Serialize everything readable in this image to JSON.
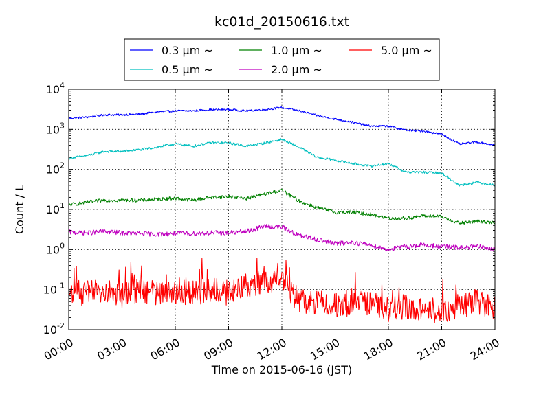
{
  "chart_data": {
    "type": "line",
    "title": "kc01d_20150616.txt",
    "xlabel": "Time on 2015-06-16 (JST)",
    "ylabel": "Count / L",
    "y_scale": "log",
    "ylim": [
      0.01,
      10000
    ],
    "xlim": [
      0,
      24
    ],
    "x_unit": "hours",
    "grid": true,
    "legend_position": "top-center",
    "x_ticks": [
      {
        "value": 0,
        "label": "00:00"
      },
      {
        "value": 3,
        "label": "03:00"
      },
      {
        "value": 6,
        "label": "06:00"
      },
      {
        "value": 9,
        "label": "09:00"
      },
      {
        "value": 12,
        "label": "12:00"
      },
      {
        "value": 15,
        "label": "15:00"
      },
      {
        "value": 18,
        "label": "18:00"
      },
      {
        "value": 21,
        "label": "21:00"
      },
      {
        "value": 24,
        "label": "24:00"
      }
    ],
    "y_ticks": [
      {
        "value": 0.01,
        "base": "10",
        "exp": "-2"
      },
      {
        "value": 0.1,
        "base": "10",
        "exp": "-1"
      },
      {
        "value": 1,
        "base": "10",
        "exp": "0"
      },
      {
        "value": 10,
        "base": "10",
        "exp": "1"
      },
      {
        "value": 100,
        "base": "10",
        "exp": "2"
      },
      {
        "value": 1000,
        "base": "10",
        "exp": "3"
      },
      {
        "value": 10000,
        "base": "10",
        "exp": "4"
      }
    ],
    "x": [
      0,
      1,
      2,
      3,
      4,
      5,
      6,
      7,
      8,
      9,
      10,
      11,
      12,
      13,
      14,
      15,
      16,
      17,
      18,
      19,
      20,
      21,
      22,
      23,
      24
    ],
    "series": [
      {
        "name": "0.3 μm ~",
        "color": "#0000ff",
        "values": [
          1900,
          2000,
          2300,
          2300,
          2400,
          2700,
          2900,
          2900,
          3100,
          3100,
          2900,
          3100,
          3500,
          2900,
          2200,
          1800,
          1500,
          1200,
          1200,
          950,
          900,
          750,
          430,
          480,
          400
        ]
      },
      {
        "name": "0.5 μm ~",
        "color": "#00bfbf",
        "values": [
          190,
          220,
          280,
          280,
          310,
          360,
          430,
          380,
          460,
          460,
          380,
          450,
          560,
          350,
          200,
          170,
          140,
          120,
          140,
          85,
          85,
          80,
          40,
          48,
          40
        ]
      },
      {
        "name": "1.0 μm ~",
        "color": "#008000",
        "values": [
          13,
          15,
          17,
          17,
          17,
          18,
          19,
          17,
          20,
          21,
          19,
          24,
          30,
          16,
          11,
          8.5,
          8.5,
          7.5,
          6,
          6,
          7,
          6.5,
          4.5,
          5,
          4.8
        ]
      },
      {
        "name": "2.0 μm ~",
        "color": "#bf00bf",
        "values": [
          2.7,
          2.6,
          2.8,
          2.6,
          2.5,
          2.4,
          2.5,
          2.5,
          2.6,
          2.6,
          2.8,
          3.8,
          3.6,
          2.2,
          1.8,
          1.4,
          1.5,
          1.3,
          1.0,
          1.2,
          1.3,
          1.2,
          1.1,
          1.2,
          1.0
        ]
      },
      {
        "name": "5.0 μm ~",
        "color": "#ff0000",
        "values": [
          0.09,
          0.08,
          0.09,
          0.07,
          0.1,
          0.08,
          0.09,
          0.08,
          0.1,
          0.08,
          0.12,
          0.15,
          0.16,
          0.05,
          0.05,
          0.04,
          0.04,
          0.05,
          0.03,
          0.04,
          0.03,
          0.03,
          0.04,
          0.05,
          0.03
        ]
      }
    ]
  }
}
